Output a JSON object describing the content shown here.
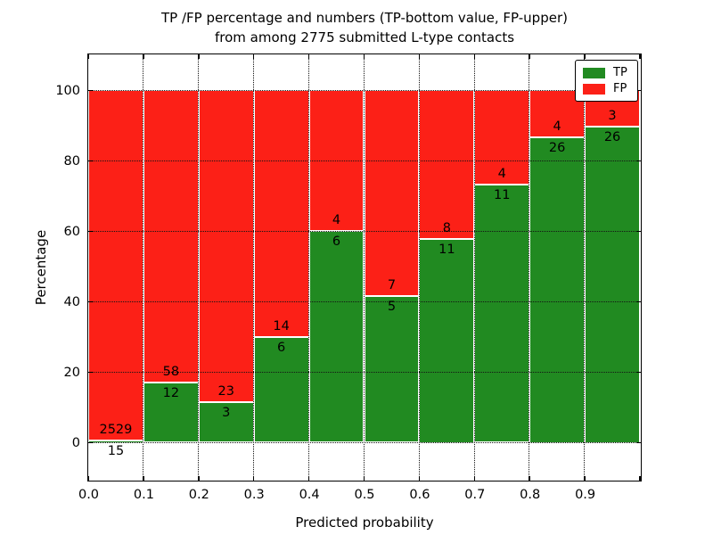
{
  "figure": {
    "title_line1": "TP /FP percentage and numbers (TP-bottom value, FP-upper)",
    "title_line2": "from among 2775 submitted L-type contacts"
  },
  "chart_data": {
    "type": "bar",
    "stacked": true,
    "title": "TP /FP percentage and numbers (TP-bottom value, FP-upper) from among 2775 submitted L-type contacts",
    "xlabel": "Predicted probability",
    "ylabel": "Percentage",
    "total_contacts": 2775,
    "bins": [
      "0.0-0.1",
      "0.1-0.2",
      "0.2-0.3",
      "0.3-0.4",
      "0.4-0.5",
      "0.5-0.6",
      "0.6-0.7",
      "0.7-0.8",
      "0.8-0.9",
      "0.9-1.0"
    ],
    "series": [
      {
        "name": "TP",
        "color": "#218a21",
        "counts": [
          15,
          12,
          3,
          6,
          6,
          5,
          11,
          11,
          26,
          26
        ],
        "percent": [
          0.59,
          17.14,
          11.54,
          30.0,
          60.0,
          41.67,
          57.89,
          73.33,
          86.67,
          89.66
        ]
      },
      {
        "name": "FP",
        "color": "#fc2017",
        "counts": [
          2529,
          58,
          23,
          14,
          4,
          7,
          8,
          4,
          4,
          3
        ],
        "percent": [
          99.41,
          82.86,
          88.46,
          70.0,
          40.0,
          58.33,
          42.11,
          26.67,
          13.33,
          10.34
        ]
      }
    ],
    "xticks": [
      "0.0",
      "0.1",
      "0.2",
      "0.3",
      "0.4",
      "0.5",
      "0.6",
      "0.7",
      "0.8",
      "0.9"
    ],
    "yticks": [
      "0",
      "20",
      "40",
      "60",
      "80",
      "100"
    ],
    "xlim": [
      0.0,
      1.0
    ],
    "ylim": [
      -10.5,
      110.2
    ],
    "grid": true,
    "legend": {
      "position": "upper right",
      "items": [
        {
          "label": "TP",
          "color": "#218a21"
        },
        {
          "label": "FP",
          "color": "#fc2017"
        }
      ]
    }
  }
}
